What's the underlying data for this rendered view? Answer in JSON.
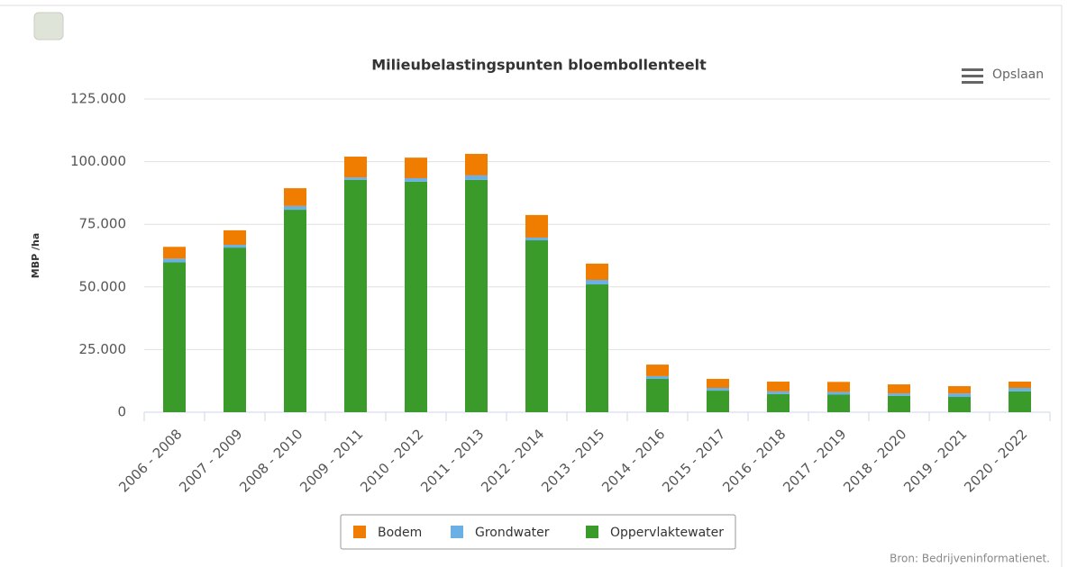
{
  "chart_data": {
    "type": "stacked_bar",
    "title": "Milieubelastingspunten bloembollenteelt",
    "y_label": "MBP /ha",
    "menu_label": "Opslaan",
    "source": "Bron: Bedrijveninformatienet.",
    "categories": [
      "2006 - 2008",
      "2007 - 2009",
      "2008 - 2010",
      "2009 - 2011",
      "2010 - 2012",
      "2011 - 2013",
      "2012 - 2014",
      "2013 - 2015",
      "2014 - 2016",
      "2015 - 2017",
      "2016 - 2018",
      "2017 - 2019",
      "2018 - 2020",
      "2019 - 2021",
      "2020 - 2022"
    ],
    "series": [
      {
        "name": "Bodem",
        "color": "#f07c00",
        "values": [
          4700,
          5800,
          7100,
          8300,
          8200,
          8600,
          9000,
          6500,
          4600,
          3600,
          3900,
          4000,
          3600,
          2900,
          2500
        ]
      },
      {
        "name": "Grondwater",
        "color": "#6ab0e4",
        "values": [
          1500,
          1100,
          1500,
          1000,
          1400,
          1800,
          1100,
          1800,
          1100,
          1100,
          1100,
          1100,
          1000,
          1400,
          1400
        ]
      },
      {
        "name": "Oppervlaktewater",
        "color": "#3a9b2a",
        "values": [
          59800,
          65700,
          80800,
          92700,
          92000,
          92700,
          68600,
          51000,
          13300,
          8600,
          7200,
          7000,
          6500,
          6100,
          8300
        ]
      }
    ],
    "ylim": [
      0,
      125000
    ],
    "yticks": [
      0,
      {
        "value": 25000,
        "label": "25.000"
      },
      {
        "value": 50000,
        "label": "50.000"
      },
      {
        "value": 75000,
        "label": "75.000"
      },
      {
        "value": 100000,
        "label": "100.000"
      },
      {
        "value": 125000,
        "label": "125.000"
      }
    ],
    "grid": true
  }
}
